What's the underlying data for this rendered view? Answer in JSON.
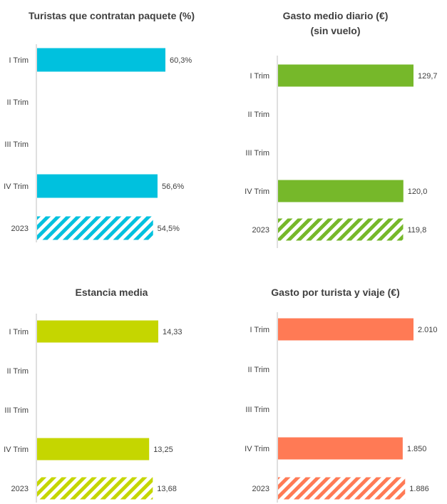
{
  "chart_data": [
    {
      "type": "bar",
      "orientation": "horizontal",
      "title": "Turistas que contratan paquete (%)",
      "color": "#00C1DE",
      "categories": [
        "I Trim",
        "II Trim",
        "III Trim",
        "IV Trim",
        "2023"
      ],
      "values": [
        60.3,
        null,
        null,
        56.6,
        54.5
      ],
      "value_labels": [
        "60,3%",
        "",
        "",
        "56,6%",
        "54,5%"
      ],
      "hatched": [
        false,
        false,
        false,
        false,
        true
      ]
    },
    {
      "type": "bar",
      "orientation": "horizontal",
      "title": "Gasto medio diario (€)",
      "subtitle": "(sin vuelo)",
      "color": "#76B82A",
      "categories": [
        "I Trim",
        "II Trim",
        "III Trim",
        "IV Trim",
        "2023"
      ],
      "values": [
        129.7,
        null,
        null,
        120.0,
        119.8
      ],
      "value_labels": [
        "129,7",
        "",
        "",
        "120,0",
        "119,8"
      ],
      "hatched": [
        false,
        false,
        false,
        false,
        true
      ]
    },
    {
      "type": "bar",
      "orientation": "horizontal",
      "title": "Estancia media",
      "color": "#C5D600",
      "categories": [
        "I Trim",
        "II Trim",
        "III Trim",
        "IV Trim",
        "2023"
      ],
      "values": [
        14.33,
        null,
        null,
        13.25,
        13.68
      ],
      "value_labels": [
        "14,33",
        "",
        "",
        "13,25",
        "13,68"
      ],
      "hatched": [
        false,
        false,
        false,
        false,
        true
      ]
    },
    {
      "type": "bar",
      "orientation": "horizontal",
      "title": "Gasto por turista y viaje (€)",
      "color": "#FF7A55",
      "categories": [
        "I Trim",
        "II Trim",
        "III Trim",
        "IV Trim",
        "2023"
      ],
      "values": [
        2010,
        null,
        null,
        1850,
        1886
      ],
      "value_labels": [
        "2.010",
        "",
        "",
        "1.850",
        "1.886"
      ],
      "hatched": [
        false,
        false,
        false,
        false,
        true
      ]
    }
  ]
}
